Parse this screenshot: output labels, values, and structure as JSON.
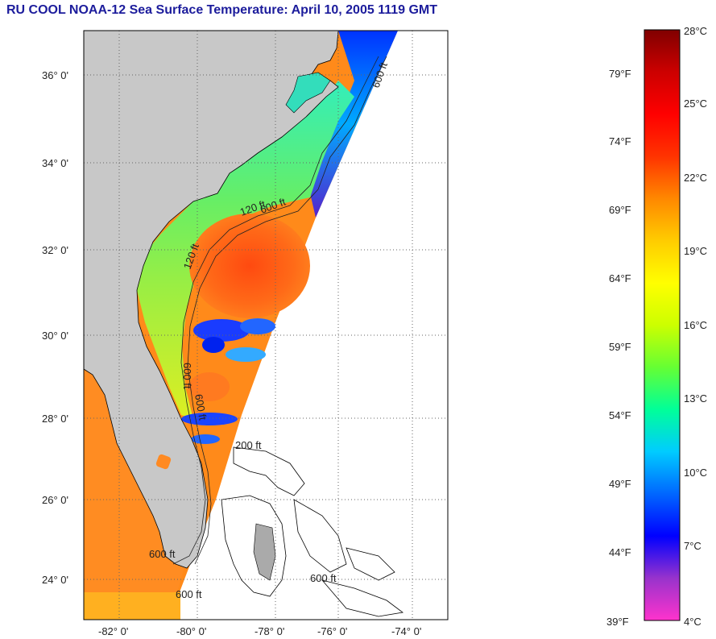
{
  "title": "RU COOL  NOAA-12  Sea Surface Temperature:  April 10, 2005 1119 GMT",
  "map": {
    "lat_labels": [
      "36° 0'",
      "34° 0'",
      "32° 0'",
      "30° 0'",
      "28° 0'",
      "26° 0'",
      "24° 0'"
    ],
    "lon_labels": [
      "-82° 0'",
      "-80° 0'",
      "-78° 0'",
      "-76° 0'",
      "-74° 0'"
    ],
    "contour_labels": [
      "600 ft",
      "120 ft",
      "600 ft",
      "120 ft",
      "600 ft",
      "600 ft",
      "200 ft",
      "600 ft",
      "600 ft",
      "600 ft"
    ],
    "colors": {
      "land": "#c8c8c8",
      "coast": "#000000",
      "grid": "#777777"
    }
  },
  "colorbar": {
    "celsius_labels": [
      "28°C",
      "25°C",
      "22°C",
      "19°C",
      "16°C",
      "13°C",
      "10°C",
      "7°C",
      "4°C"
    ],
    "fahrenheit_labels": [
      "79°F",
      "74°F",
      "69°F",
      "64°F",
      "59°F",
      "54°F",
      "49°F",
      "44°F",
      "39°F"
    ],
    "colors": [
      "#ff33cc",
      "#9933cc",
      "#0000ff",
      "#0066ff",
      "#00ccff",
      "#00ff99",
      "#66ff33",
      "#ccff00",
      "#ffff00",
      "#ffcc00",
      "#ff8800",
      "#ff3300",
      "#ff0000",
      "#cc0000",
      "#800000"
    ]
  }
}
